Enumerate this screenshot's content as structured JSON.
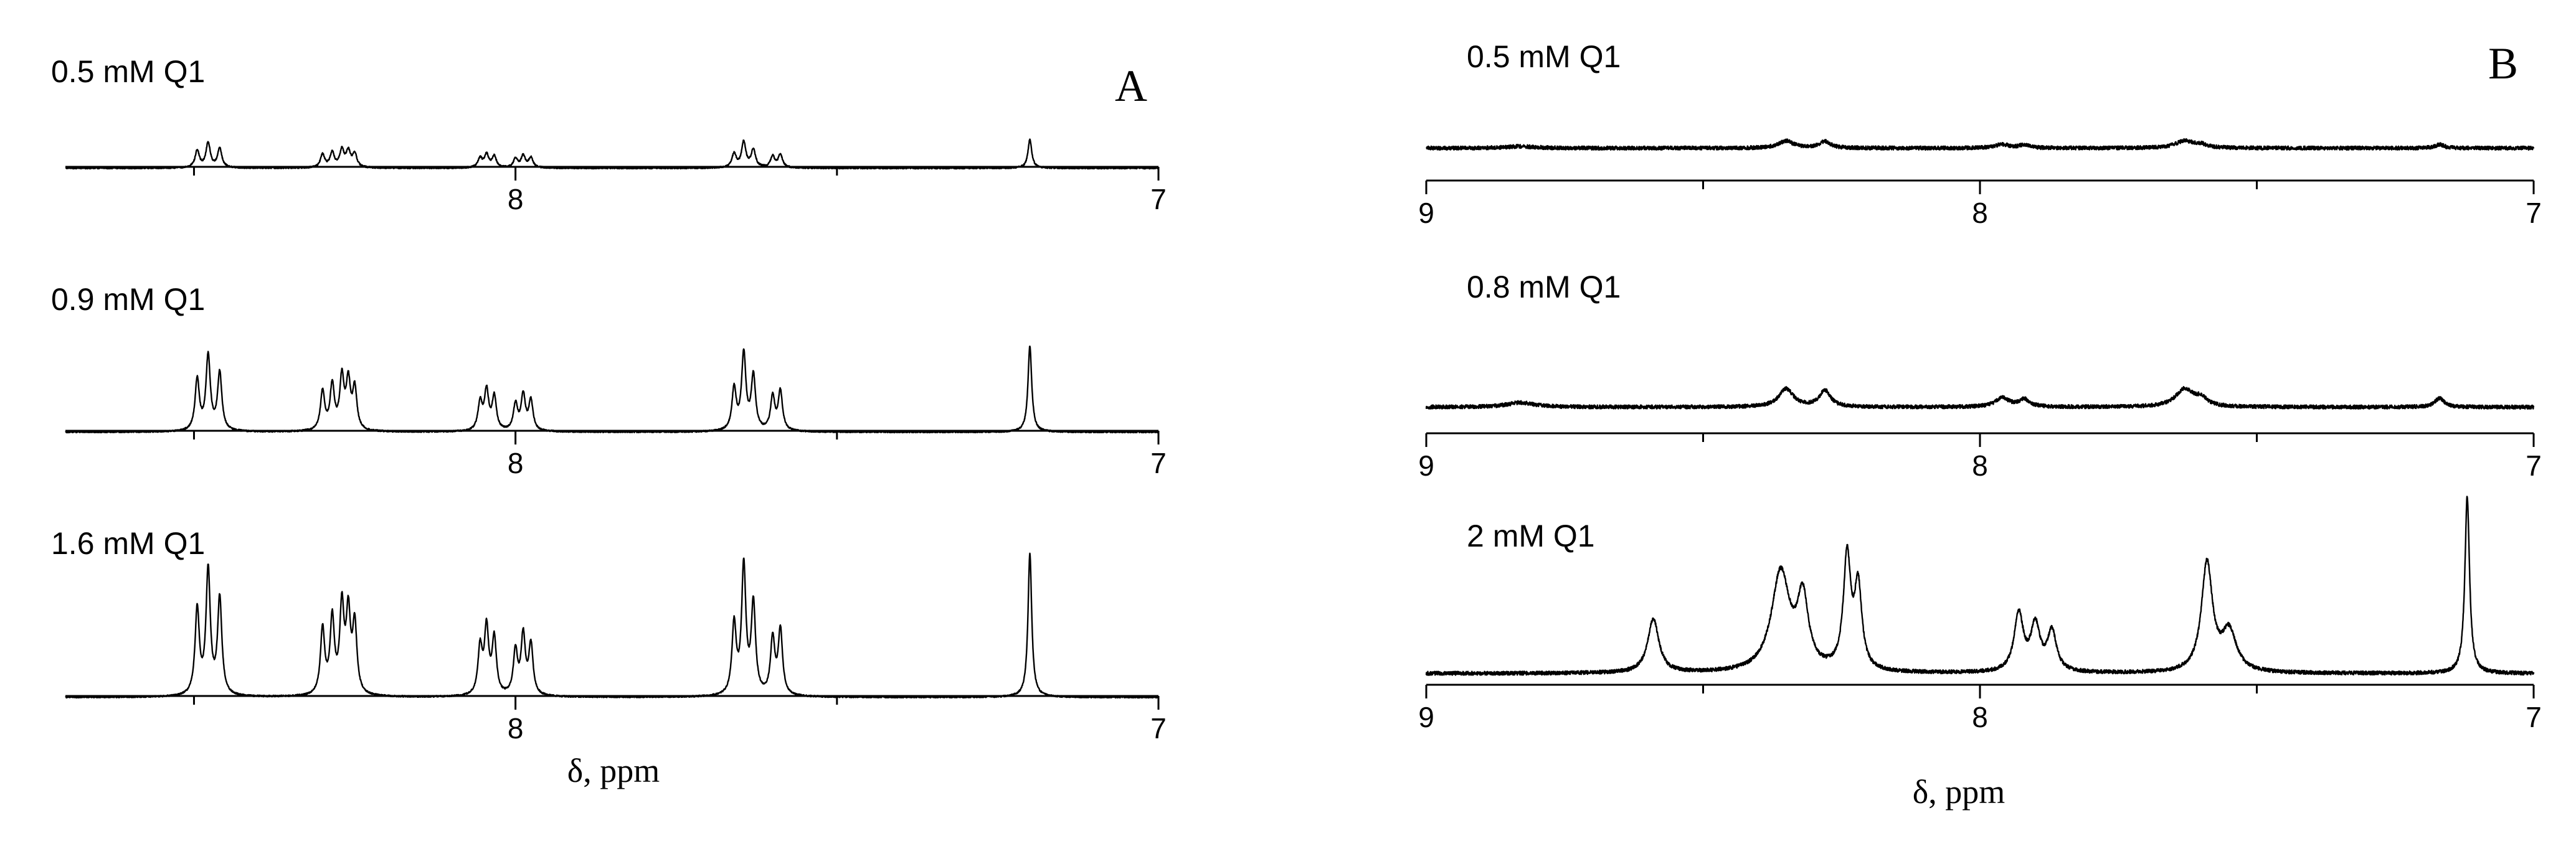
{
  "chart_data": [
    {
      "type": "line",
      "panel": "A",
      "xlabel": "δ, ppm",
      "x_axis_reversed": true,
      "grid": false,
      "xlim": [
        8.7,
        7.0
      ],
      "xticks_labeled": [
        8,
        7
      ],
      "series": [
        {
          "name": "0.5 mM Q1",
          "intensity": 0.2,
          "peaks": [
            {
              "x": 8.495,
              "y": 0.55,
              "w": 0.004
            },
            {
              "x": 8.478,
              "y": 0.8,
              "w": 0.004
            },
            {
              "x": 8.46,
              "y": 0.62,
              "w": 0.004
            },
            {
              "x": 8.3,
              "y": 0.42,
              "w": 0.004
            },
            {
              "x": 8.285,
              "y": 0.48,
              "w": 0.004
            },
            {
              "x": 8.27,
              "y": 0.55,
              "w": 0.004
            },
            {
              "x": 8.26,
              "y": 0.5,
              "w": 0.004
            },
            {
              "x": 8.25,
              "y": 0.44,
              "w": 0.004
            },
            {
              "x": 8.055,
              "y": 0.3,
              "w": 0.004
            },
            {
              "x": 8.045,
              "y": 0.42,
              "w": 0.004
            },
            {
              "x": 8.033,
              "y": 0.36,
              "w": 0.004
            },
            {
              "x": 8.0,
              "y": 0.28,
              "w": 0.004
            },
            {
              "x": 7.988,
              "y": 0.38,
              "w": 0.004
            },
            {
              "x": 7.976,
              "y": 0.32,
              "w": 0.004
            },
            {
              "x": 7.66,
              "y": 0.45,
              "w": 0.004
            },
            {
              "x": 7.645,
              "y": 0.82,
              "w": 0.004
            },
            {
              "x": 7.63,
              "y": 0.58,
              "w": 0.004
            },
            {
              "x": 7.6,
              "y": 0.36,
              "w": 0.004
            },
            {
              "x": 7.588,
              "y": 0.42,
              "w": 0.004
            },
            {
              "x": 7.2,
              "y": 0.92,
              "w": 0.0035
            }
          ]
        },
        {
          "name": "0.9 mM Q1",
          "intensity": 0.6,
          "peaks": [
            {
              "x": 8.495,
              "y": 0.55,
              "w": 0.004
            },
            {
              "x": 8.478,
              "y": 0.8,
              "w": 0.004
            },
            {
              "x": 8.46,
              "y": 0.62,
              "w": 0.004
            },
            {
              "x": 8.3,
              "y": 0.42,
              "w": 0.004
            },
            {
              "x": 8.285,
              "y": 0.48,
              "w": 0.004
            },
            {
              "x": 8.27,
              "y": 0.55,
              "w": 0.004
            },
            {
              "x": 8.26,
              "y": 0.5,
              "w": 0.004
            },
            {
              "x": 8.25,
              "y": 0.44,
              "w": 0.004
            },
            {
              "x": 8.055,
              "y": 0.3,
              "w": 0.004
            },
            {
              "x": 8.045,
              "y": 0.42,
              "w": 0.004
            },
            {
              "x": 8.033,
              "y": 0.36,
              "w": 0.004
            },
            {
              "x": 8.0,
              "y": 0.28,
              "w": 0.004
            },
            {
              "x": 7.988,
              "y": 0.38,
              "w": 0.004
            },
            {
              "x": 7.976,
              "y": 0.32,
              "w": 0.004
            },
            {
              "x": 7.66,
              "y": 0.45,
              "w": 0.004
            },
            {
              "x": 7.645,
              "y": 0.82,
              "w": 0.004
            },
            {
              "x": 7.63,
              "y": 0.58,
              "w": 0.004
            },
            {
              "x": 7.6,
              "y": 0.36,
              "w": 0.004
            },
            {
              "x": 7.588,
              "y": 0.42,
              "w": 0.004
            },
            {
              "x": 7.2,
              "y": 0.92,
              "w": 0.0035
            }
          ]
        },
        {
          "name": "1.6 mM Q1",
          "intensity": 1.0,
          "peaks": [
            {
              "x": 8.495,
              "y": 0.55,
              "w": 0.004
            },
            {
              "x": 8.478,
              "y": 0.8,
              "w": 0.004
            },
            {
              "x": 8.46,
              "y": 0.62,
              "w": 0.004
            },
            {
              "x": 8.3,
              "y": 0.42,
              "w": 0.004
            },
            {
              "x": 8.285,
              "y": 0.48,
              "w": 0.004
            },
            {
              "x": 8.27,
              "y": 0.55,
              "w": 0.004
            },
            {
              "x": 8.26,
              "y": 0.5,
              "w": 0.004
            },
            {
              "x": 8.25,
              "y": 0.44,
              "w": 0.004
            },
            {
              "x": 8.055,
              "y": 0.3,
              "w": 0.004
            },
            {
              "x": 8.045,
              "y": 0.42,
              "w": 0.004
            },
            {
              "x": 8.033,
              "y": 0.36,
              "w": 0.004
            },
            {
              "x": 8.0,
              "y": 0.28,
              "w": 0.004
            },
            {
              "x": 7.988,
              "y": 0.38,
              "w": 0.004
            },
            {
              "x": 7.976,
              "y": 0.32,
              "w": 0.004
            },
            {
              "x": 7.66,
              "y": 0.45,
              "w": 0.004
            },
            {
              "x": 7.645,
              "y": 0.82,
              "w": 0.004
            },
            {
              "x": 7.63,
              "y": 0.58,
              "w": 0.004
            },
            {
              "x": 7.6,
              "y": 0.36,
              "w": 0.004
            },
            {
              "x": 7.588,
              "y": 0.42,
              "w": 0.004
            },
            {
              "x": 7.2,
              "y": 0.92,
              "w": 0.0035
            }
          ]
        }
      ]
    },
    {
      "type": "line",
      "panel": "B",
      "xlabel": "δ, ppm",
      "x_axis_reversed": true,
      "grid": false,
      "xlim": [
        9.0,
        7.0
      ],
      "xticks_labeled": [
        9,
        8,
        7
      ],
      "series": [
        {
          "name": "0.5 mM Q1",
          "intensity": 0.2,
          "peaks": [
            {
              "x": 8.83,
              "y": 0.05,
              "w": 0.03
            },
            {
              "x": 8.35,
              "y": 0.2,
              "w": 0.016
            },
            {
              "x": 8.28,
              "y": 0.18,
              "w": 0.012
            },
            {
              "x": 7.96,
              "y": 0.1,
              "w": 0.015
            },
            {
              "x": 7.92,
              "y": 0.08,
              "w": 0.012
            },
            {
              "x": 7.63,
              "y": 0.2,
              "w": 0.02
            },
            {
              "x": 7.6,
              "y": 0.08,
              "w": 0.012
            },
            {
              "x": 7.17,
              "y": 0.1,
              "w": 0.01
            }
          ]
        },
        {
          "name": "0.8 mM Q1",
          "intensity": 0.5,
          "peaks": [
            {
              "x": 8.83,
              "y": 0.05,
              "w": 0.03
            },
            {
              "x": 8.35,
              "y": 0.2,
              "w": 0.016
            },
            {
              "x": 8.28,
              "y": 0.18,
              "w": 0.012
            },
            {
              "x": 7.96,
              "y": 0.1,
              "w": 0.015
            },
            {
              "x": 7.92,
              "y": 0.08,
              "w": 0.012
            },
            {
              "x": 7.63,
              "y": 0.2,
              "w": 0.02
            },
            {
              "x": 7.6,
              "y": 0.08,
              "w": 0.012
            },
            {
              "x": 7.17,
              "y": 0.1,
              "w": 0.01
            }
          ]
        },
        {
          "name": "2 mM Q1",
          "intensity": 1.0,
          "peaks": [
            {
              "x": 8.59,
              "y": 0.3,
              "w": 0.012
            },
            {
              "x": 8.36,
              "y": 0.55,
              "w": 0.02
            },
            {
              "x": 8.32,
              "y": 0.38,
              "w": 0.012
            },
            {
              "x": 8.24,
              "y": 0.62,
              "w": 0.008
            },
            {
              "x": 8.22,
              "y": 0.45,
              "w": 0.008
            },
            {
              "x": 7.93,
              "y": 0.32,
              "w": 0.01
            },
            {
              "x": 7.9,
              "y": 0.25,
              "w": 0.01
            },
            {
              "x": 7.87,
              "y": 0.22,
              "w": 0.01
            },
            {
              "x": 7.59,
              "y": 0.6,
              "w": 0.012
            },
            {
              "x": 7.55,
              "y": 0.22,
              "w": 0.016
            },
            {
              "x": 7.12,
              "y": 0.98,
              "w": 0.005
            }
          ]
        }
      ]
    }
  ],
  "panels": [
    {
      "letter": "A",
      "xlabel": "δ, ppm"
    },
    {
      "letter": "B",
      "xlabel": "δ, ppm"
    }
  ]
}
